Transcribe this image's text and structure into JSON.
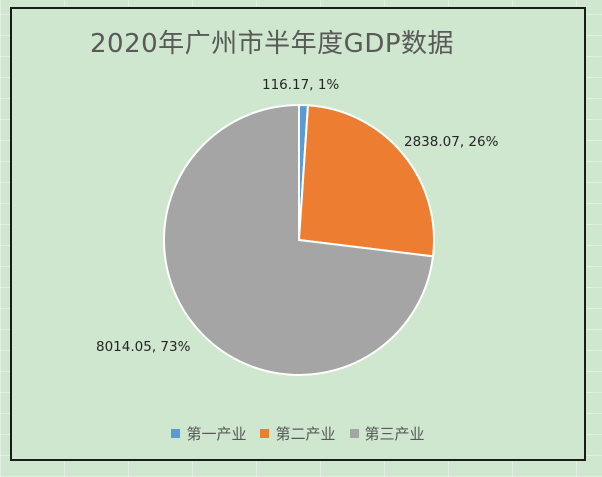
{
  "chart_data": {
    "type": "pie",
    "title": "2020年广州市半年度GDP数据",
    "categories": [
      "第一产业",
      "第二产业",
      "第三产业"
    ],
    "values": [
      116.17,
      2838.07,
      8014.05
    ],
    "percent_labels": [
      "1%",
      "26%",
      "73%"
    ],
    "data_labels": [
      "116.17, 1%",
      "2838.07, 26%",
      "8014.05, 73%"
    ],
    "colors": [
      "#5b9bd5",
      "#ed7d31",
      "#a5a5a5"
    ],
    "legend_position": "bottom",
    "start_angle_deg": 0,
    "direction": "clockwise"
  }
}
